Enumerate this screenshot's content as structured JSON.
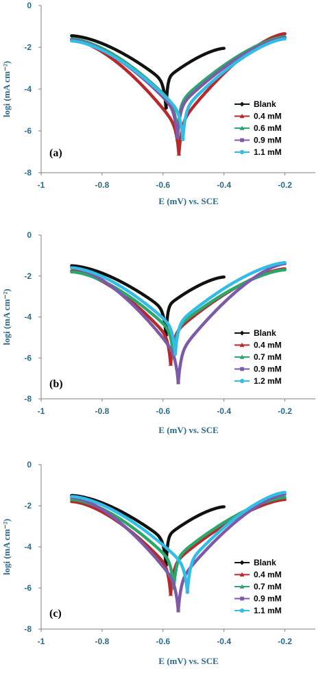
{
  "colors": {
    "Blank": "#111111",
    "0.4 mM": "#b5292d",
    "0.6 mM": "#2ca66a",
    "0.7 mM": "#2ca66a",
    "0.9 mM": "#7d5aa7",
    "1.1 mM": "#33bde6",
    "1.2 mM": "#33bde6"
  },
  "chart_data": [
    {
      "type": "line",
      "panel_label": "(a)",
      "xlabel": "E (mV) vs. SCE",
      "ylabel": "logi (mA cm⁻²)",
      "xlim": [
        -1,
        -0.1
      ],
      "ylim": [
        -8,
        0
      ],
      "x_ticks": [
        "-1",
        "-0.8",
        "-0.6",
        "-0.4",
        "-0.2"
      ],
      "y_ticks": [
        "0",
        "-2",
        "-4",
        "-6",
        "-8"
      ],
      "legend_position": "right",
      "series": [
        {
          "name": "Blank",
          "marker": "diamond",
          "ecorr": -0.59,
          "icorr_log": -4.9,
          "x_start": -0.9,
          "y_start": -1.45,
          "x_end": -0.4,
          "y_end": -2.05
        },
        {
          "name": "0.4 mM",
          "marker": "triangle",
          "ecorr": -0.548,
          "icorr_log": -7.1,
          "x_start": -0.9,
          "y_start": -1.65,
          "x_end": -0.2,
          "y_end": -1.35
        },
        {
          "name": "0.6 mM",
          "marker": "triangle",
          "ecorr": -0.553,
          "icorr_log": -6.1,
          "x_start": -0.9,
          "y_start": -1.6,
          "x_end": -0.2,
          "y_end": -1.5
        },
        {
          "name": "0.9 mM",
          "marker": "square",
          "ecorr": -0.553,
          "icorr_log": -6.3,
          "x_start": -0.9,
          "y_start": -1.65,
          "x_end": -0.2,
          "y_end": -1.55
        },
        {
          "name": "1.1 mM",
          "marker": "circle",
          "ecorr": -0.535,
          "icorr_log": -6.4,
          "x_start": -0.9,
          "y_start": -1.7,
          "x_end": -0.2,
          "y_end": -1.6
        }
      ]
    },
    {
      "type": "line",
      "panel_label": "(b)",
      "xlabel": "E (mV) vs. SCE",
      "ylabel": "logi (mA cm⁻²)",
      "xlim": [
        -1,
        -0.1
      ],
      "ylim": [
        -8,
        0
      ],
      "x_ticks": [
        "-1",
        "-0.8",
        "-0.6",
        "-0.4",
        "-0.2"
      ],
      "y_ticks": [
        "0",
        "-2",
        "-4",
        "-6",
        "-8"
      ],
      "legend_position": "right",
      "series": [
        {
          "name": "Blank",
          "marker": "diamond",
          "ecorr": -0.59,
          "icorr_log": -4.9,
          "x_start": -0.9,
          "y_start": -1.5,
          "x_end": -0.4,
          "y_end": -2.05
        },
        {
          "name": "0.4 mM",
          "marker": "triangle",
          "ecorr": -0.575,
          "icorr_log": -6.3,
          "x_start": -0.9,
          "y_start": -1.75,
          "x_end": -0.2,
          "y_end": -1.65
        },
        {
          "name": "0.7 mM",
          "marker": "triangle",
          "ecorr": -0.565,
          "icorr_log": -6.0,
          "x_start": -0.9,
          "y_start": -1.8,
          "x_end": -0.2,
          "y_end": -1.7
        },
        {
          "name": "0.9 mM",
          "marker": "square",
          "ecorr": -0.55,
          "icorr_log": -7.2,
          "x_start": -0.9,
          "y_start": -1.6,
          "x_end": -0.2,
          "y_end": -1.4
        },
        {
          "name": "1.2 mM",
          "marker": "circle",
          "ecorr": -0.56,
          "icorr_log": -5.8,
          "x_start": -0.9,
          "y_start": -1.6,
          "x_end": -0.2,
          "y_end": -1.35
        }
      ]
    },
    {
      "type": "line",
      "panel_label": "(c)",
      "xlabel": "E (mV) vs. SCE",
      "ylabel": "logi (mA cm⁻²)",
      "xlim": [
        -1,
        -0.1
      ],
      "ylim": [
        -8,
        0
      ],
      "x_ticks": [
        "-1",
        "-0.8",
        "-0.6",
        "-0.4",
        "-0.2"
      ],
      "y_ticks": [
        "0",
        "-2",
        "-4",
        "-6",
        "-8"
      ],
      "legend_position": "right",
      "series": [
        {
          "name": "Blank",
          "marker": "diamond",
          "ecorr": -0.59,
          "icorr_log": -4.9,
          "x_start": -0.9,
          "y_start": -1.5,
          "x_end": -0.4,
          "y_end": -2.05
        },
        {
          "name": "0.4 mM",
          "marker": "triangle",
          "ecorr": -0.575,
          "icorr_log": -6.3,
          "x_start": -0.9,
          "y_start": -1.8,
          "x_end": -0.2,
          "y_end": -1.7
        },
        {
          "name": "0.7 mM",
          "marker": "triangle",
          "ecorr": -0.565,
          "icorr_log": -6.0,
          "x_start": -0.9,
          "y_start": -1.7,
          "x_end": -0.2,
          "y_end": -1.6
        },
        {
          "name": "0.9 mM",
          "marker": "square",
          "ecorr": -0.55,
          "icorr_log": -7.1,
          "x_start": -0.9,
          "y_start": -1.6,
          "x_end": -0.2,
          "y_end": -1.45
        },
        {
          "name": "1.1 mM",
          "marker": "circle",
          "ecorr": -0.52,
          "icorr_log": -6.2,
          "x_start": -0.9,
          "y_start": -1.55,
          "x_end": -0.2,
          "y_end": -1.35
        }
      ]
    }
  ]
}
